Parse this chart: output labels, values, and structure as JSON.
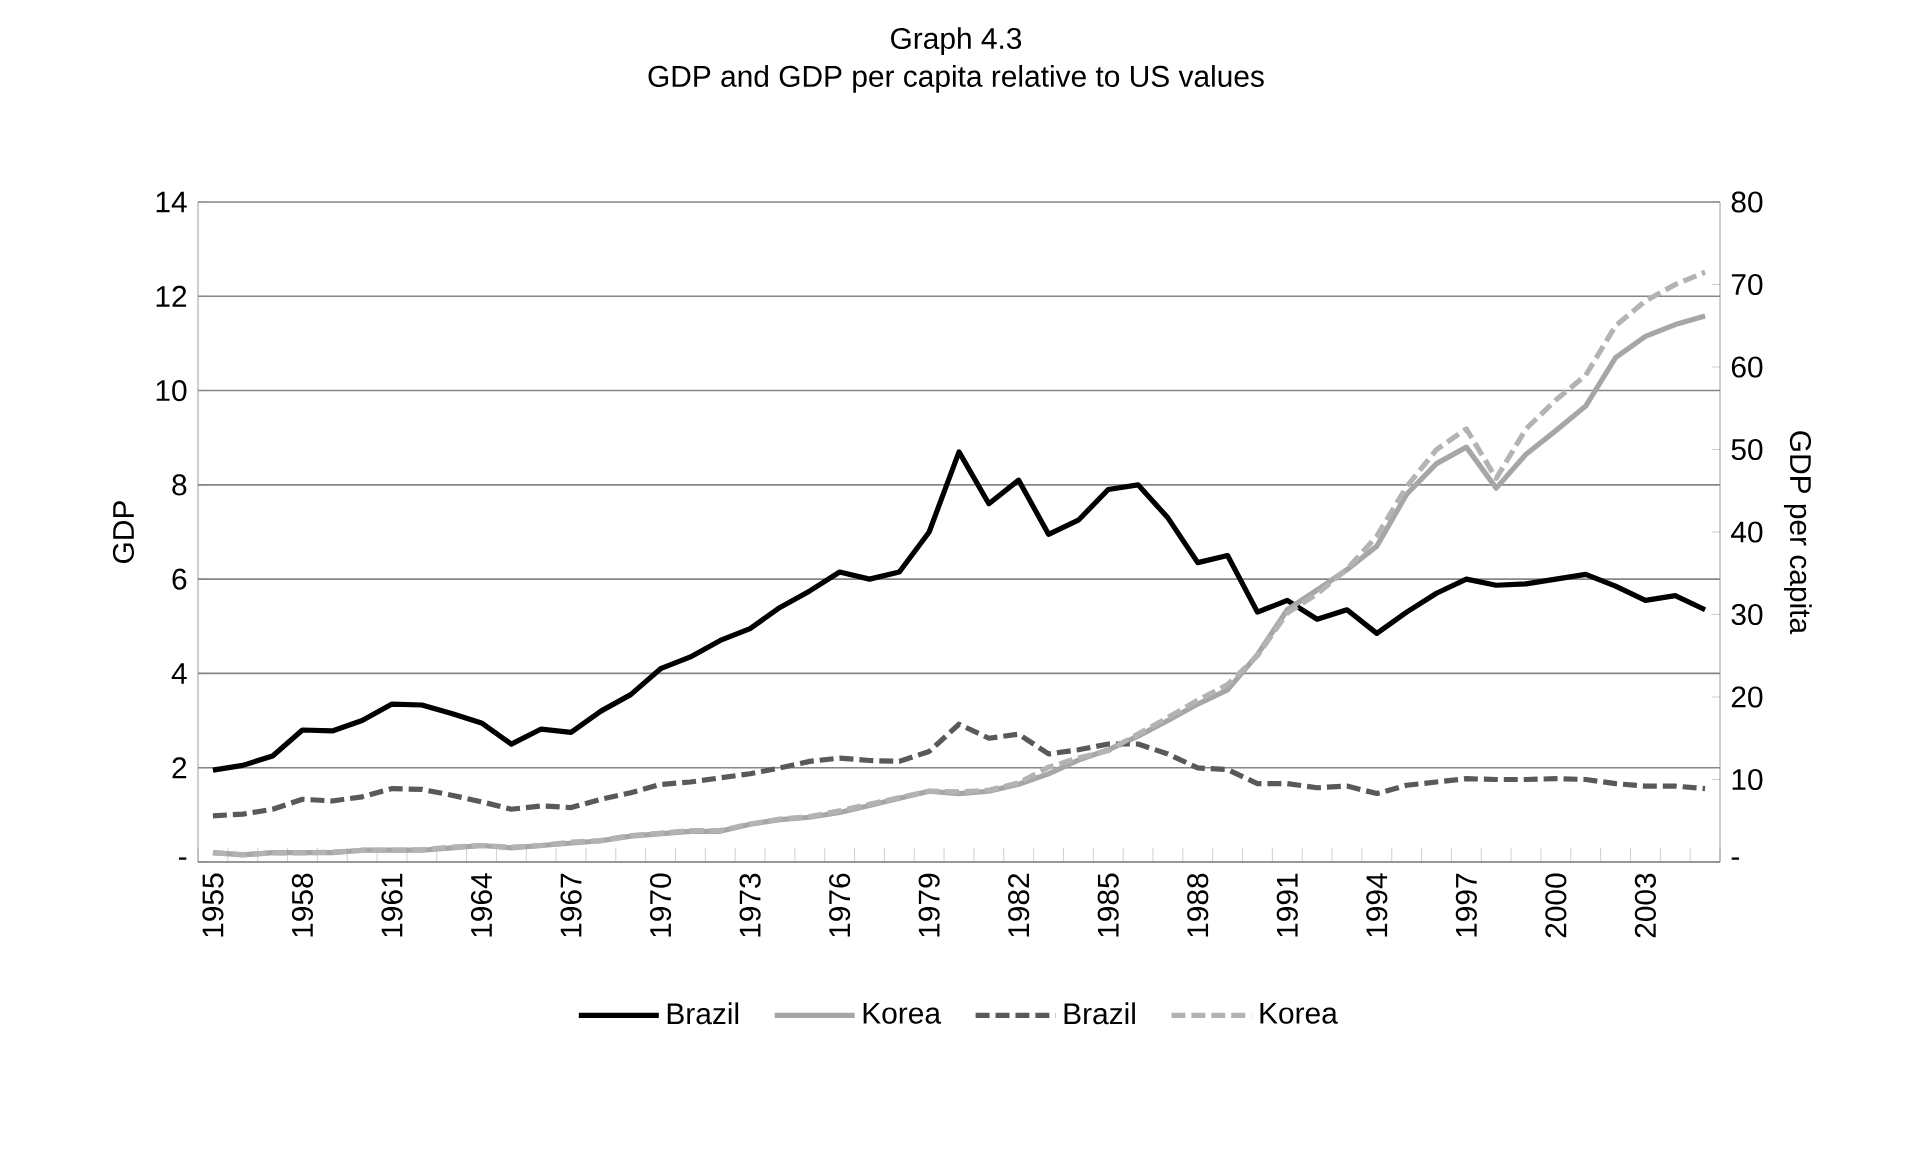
{
  "chart_data": {
    "type": "line",
    "title": "Graph 4.3",
    "subtitle": "GDP and GDP per capita relative to US values",
    "ylabel": "GDP",
    "y2label": "GDP per capita",
    "categories": [
      "1955",
      null,
      null,
      "1958",
      null,
      null,
      "1961",
      null,
      null,
      "1964",
      null,
      null,
      "1967",
      null,
      null,
      "1970",
      null,
      null,
      "1973",
      null,
      null,
      "1976",
      null,
      null,
      "1979",
      null,
      null,
      "1982",
      null,
      null,
      "1985",
      null,
      null,
      "1988",
      null,
      null,
      "1991",
      null,
      null,
      "1994",
      null,
      null,
      "1997",
      null,
      null,
      "2000",
      null,
      null,
      "2003",
      null,
      null
    ],
    "ylim": [
      0,
      14
    ],
    "yticks": [
      {
        "value": 0,
        "label": "-"
      },
      2,
      4,
      6,
      8,
      10,
      12,
      14
    ],
    "y2lim": [
      0,
      80
    ],
    "y2ticks": [
      {
        "value": 0,
        "label": "-"
      },
      10,
      20,
      30,
      40,
      50,
      60,
      70,
      80
    ],
    "grid": "y",
    "legend": "bottom",
    "series": [
      {
        "name": "Brazil",
        "color": "#000000",
        "line_style": "solid",
        "values": [
          1.95,
          2.05,
          2.25,
          2.8,
          2.78,
          3.0,
          3.35,
          3.33,
          3.15,
          2.95,
          2.5,
          2.82,
          2.75,
          3.2,
          3.55,
          4.1,
          4.35,
          4.7,
          4.95,
          5.4,
          5.75,
          6.15,
          6.0,
          6.15,
          7.0,
          8.7,
          7.6,
          8.1,
          6.95,
          7.25,
          7.9,
          8.0,
          7.3,
          6.35,
          6.5,
          5.3,
          5.55,
          5.15,
          5.35,
          4.85,
          5.3,
          5.7,
          6.0,
          5.87,
          5.9,
          6.0,
          6.1,
          5.85,
          5.55,
          5.65,
          5.35
        ]
      },
      {
        "name": "Korea",
        "color": "#a6a6a6",
        "line_style": "solid",
        "values": [
          0.2,
          0.15,
          0.2,
          0.2,
          0.2,
          0.25,
          0.25,
          0.25,
          0.3,
          0.35,
          0.3,
          0.35,
          0.4,
          0.45,
          0.55,
          0.6,
          0.65,
          0.65,
          0.8,
          0.9,
          0.95,
          1.05,
          1.2,
          1.35,
          1.5,
          1.45,
          1.5,
          1.65,
          1.87,
          2.16,
          2.38,
          2.67,
          3.0,
          3.35,
          3.65,
          4.4,
          5.35,
          5.77,
          6.2,
          6.7,
          7.8,
          8.45,
          8.8,
          7.93,
          8.65,
          9.15,
          9.67,
          10.7,
          11.15,
          11.4,
          11.58
        ]
      },
      {
        "name": "Brazil",
        "color": "#595959",
        "line_style": "dashed",
        "axis": "y2",
        "values": [
          5.6,
          5.8,
          6.4,
          7.6,
          7.4,
          7.9,
          8.9,
          8.8,
          8.1,
          7.3,
          6.4,
          6.8,
          6.6,
          7.6,
          8.4,
          9.4,
          9.7,
          10.2,
          10.7,
          11.4,
          12.2,
          12.6,
          12.3,
          12.2,
          13.4,
          16.7,
          15.0,
          15.5,
          13.1,
          13.6,
          14.3,
          14.3,
          13.1,
          11.4,
          11.2,
          9.5,
          9.5,
          9.0,
          9.2,
          8.3,
          9.3,
          9.7,
          10.1,
          10.0,
          10.0,
          10.1,
          10.0,
          9.5,
          9.2,
          9.2,
          8.9
        ]
      },
      {
        "name": "Korea",
        "color": "#b3b3b3",
        "line_style": "dashed",
        "axis": "y2",
        "values": [
          1.1,
          0.9,
          1.1,
          1.1,
          1.2,
          1.4,
          1.4,
          1.5,
          1.8,
          2.0,
          1.8,
          2.0,
          2.4,
          2.6,
          3.2,
          3.5,
          3.8,
          3.8,
          4.6,
          5.2,
          5.5,
          6.2,
          7.0,
          7.8,
          8.6,
          8.5,
          8.7,
          9.6,
          11.5,
          12.6,
          13.5,
          15.5,
          17.5,
          19.6,
          21.5,
          25.0,
          30.2,
          32.5,
          35.5,
          39.5,
          45.5,
          50.0,
          52.5,
          46.5,
          52.5,
          56.0,
          59.0,
          65.0,
          68.0,
          70.0,
          71.5
        ]
      }
    ]
  }
}
